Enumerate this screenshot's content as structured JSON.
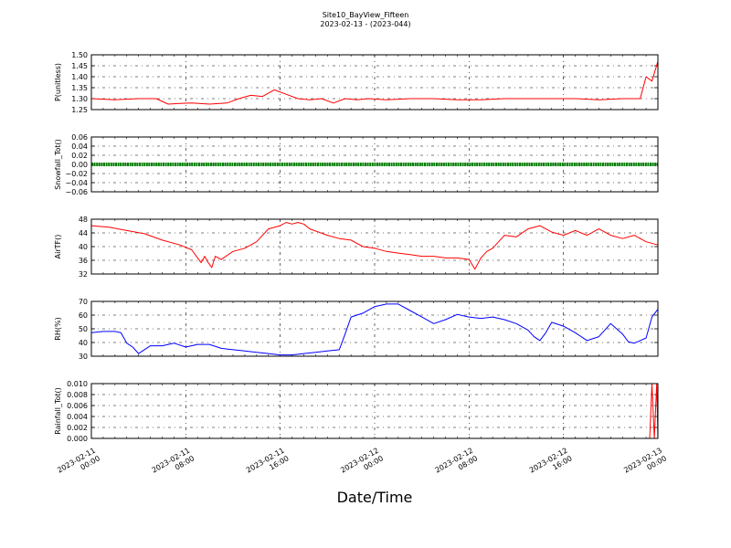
{
  "title": {
    "line1": "Site10_BayView_Fifteen",
    "line2": "2023-02-13 - (2023-044)"
  },
  "xlabel": "Date/Time",
  "x_ticks": [
    {
      "line1": "2023-02-11",
      "line2": "00:00"
    },
    {
      "line1": "2023-02-11",
      "line2": "08:00"
    },
    {
      "line1": "2023-02-11",
      "line2": "16:00"
    },
    {
      "line1": "2023-02-12",
      "line2": "00:00"
    },
    {
      "line1": "2023-02-12",
      "line2": "08:00"
    },
    {
      "line1": "2023-02-12",
      "line2": "16:00"
    },
    {
      "line1": "2023-02-13",
      "line2": "00:00"
    }
  ],
  "chart_data": [
    {
      "type": "line",
      "ylabel": "P(unitless)",
      "color": "#ff0000",
      "ylim": [
        1.25,
        1.5
      ],
      "yticks": [
        "1.25",
        "1.30",
        "1.35",
        "1.40",
        "1.45",
        "1.50"
      ],
      "xlim_hours": [
        0,
        48
      ],
      "x_hours": [
        0,
        2,
        4,
        5.5,
        6.5,
        7.5,
        8.5,
        10,
        11.5,
        12.5,
        13.5,
        14.5,
        15.5,
        16.5,
        17.5,
        18.5,
        19.5,
        20.5,
        21.5,
        22.5,
        23.5,
        25,
        27,
        29,
        31,
        33,
        35,
        37,
        39,
        41,
        43,
        45,
        46.5,
        47,
        47.5,
        48
      ],
      "values": [
        1.3,
        1.295,
        1.3,
        1.3,
        1.275,
        1.278,
        1.28,
        1.275,
        1.28,
        1.3,
        1.315,
        1.31,
        1.34,
        1.32,
        1.3,
        1.295,
        1.3,
        1.28,
        1.3,
        1.295,
        1.3,
        1.295,
        1.3,
        1.3,
        1.295,
        1.295,
        1.3,
        1.3,
        1.3,
        1.3,
        1.295,
        1.3,
        1.3,
        1.4,
        1.38,
        1.47
      ]
    },
    {
      "type": "scatter",
      "ylabel": "Snowfall_Tot()",
      "color": "#008000",
      "ylim": [
        -0.06,
        0.06
      ],
      "yticks": [
        "−0.06",
        "−0.04",
        "−0.02",
        "0.00",
        "0.02",
        "0.04",
        "0.06"
      ],
      "xlim_hours": [
        0,
        48
      ],
      "x_hours": [
        0,
        48
      ],
      "values": [
        0.0,
        0.0
      ]
    },
    {
      "type": "line",
      "ylabel": "AirTF()",
      "color": "#ff0000",
      "ylim": [
        32,
        49
      ],
      "yticks": [
        "32",
        "36",
        "40",
        "44",
        "48"
      ],
      "xlim_hours": [
        0,
        48
      ],
      "x_hours": [
        0,
        1.5,
        3,
        4.5,
        6,
        7.5,
        8.5,
        9,
        9.3,
        9.6,
        9.9,
        10.2,
        10.5,
        11,
        12,
        13,
        14,
        15,
        16,
        16.5,
        17,
        17.5,
        18,
        18.5,
        20,
        21,
        22,
        23,
        24,
        25,
        26,
        27,
        28,
        29,
        30,
        31,
        32,
        32.5,
        33,
        33.5,
        34,
        35,
        36,
        37,
        38,
        39,
        40,
        41,
        42,
        43,
        44,
        45,
        46,
        47,
        48
      ],
      "values": [
        47,
        46.5,
        45.5,
        44.5,
        42.5,
        41,
        39.5,
        37,
        35.5,
        37.5,
        35.5,
        34,
        37.5,
        36.5,
        39,
        40,
        42,
        46,
        47,
        48,
        47.5,
        48,
        47.5,
        46,
        44,
        43,
        42.5,
        40.5,
        40,
        39,
        38.5,
        38,
        37.5,
        37.5,
        37,
        37,
        36.5,
        33.5,
        37,
        39,
        40,
        44,
        43.5,
        46,
        47,
        45,
        44,
        45.5,
        44,
        46,
        44,
        43,
        44,
        42,
        41
      ]
    },
    {
      "type": "line",
      "ylabel": "RH(%)",
      "color": "#0000ff",
      "ylim": [
        30,
        72
      ],
      "yticks": [
        "30",
        "40",
        "50",
        "60",
        "70"
      ],
      "xlim_hours": [
        0,
        48
      ],
      "x_hours": [
        0,
        1,
        2,
        2.5,
        3,
        3.5,
        4,
        5,
        6,
        7,
        8,
        9,
        10,
        11,
        12,
        13,
        14,
        15,
        16,
        17,
        18,
        19,
        20,
        21,
        21.5,
        22,
        23,
        24,
        25,
        26,
        27,
        28,
        29,
        30,
        31,
        32,
        33,
        34,
        35,
        36,
        37,
        37.5,
        38,
        38.5,
        39,
        40,
        41,
        42,
        43,
        44,
        45,
        45.5,
        46,
        46.5,
        47,
        47.5,
        48
      ],
      "values": [
        48,
        49,
        49,
        48,
        40,
        37,
        32,
        38,
        38,
        40,
        37,
        39,
        39,
        36,
        35,
        34,
        33,
        32,
        31,
        31,
        32,
        33,
        34,
        35,
        47,
        60,
        63,
        68,
        70,
        70,
        65,
        60,
        55,
        58,
        62,
        60,
        59,
        60,
        58,
        55,
        50,
        45,
        42,
        48,
        56,
        53,
        48,
        42,
        45,
        55,
        47,
        41,
        40,
        42,
        44,
        60,
        66
      ]
    },
    {
      "type": "line",
      "ylabel": "Rainfall_Tot()",
      "color": "#ff0000",
      "ylim": [
        0.0,
        0.01
      ],
      "yticks": [
        "0.000",
        "0.002",
        "0.004",
        "0.006",
        "0.008",
        "0.010"
      ],
      "xlim_hours": [
        0,
        48
      ],
      "x_hours": [
        0,
        47.3,
        47.5,
        47.7,
        47.9,
        48
      ],
      "values": [
        0,
        0,
        0.01,
        0,
        0.01,
        0
      ]
    }
  ]
}
